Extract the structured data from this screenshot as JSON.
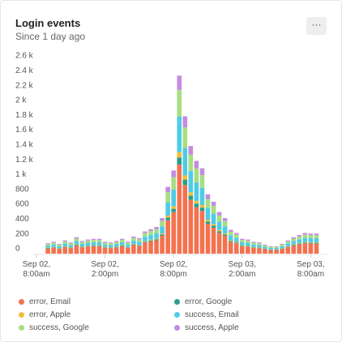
{
  "chart_data": {
    "type": "stacked_bar",
    "title": "Login events",
    "subtitle": "Since 1 day ago",
    "categories": [
      "Sep 02, 8:00am",
      null,
      null,
      null,
      null,
      null,
      null,
      null,
      null,
      null,
      null,
      null,
      "Sep 02, 2:00pm",
      null,
      null,
      null,
      null,
      null,
      null,
      null,
      null,
      null,
      null,
      null,
      "Sep 02, 8:00pm",
      null,
      null,
      null,
      null,
      null,
      null,
      null,
      null,
      null,
      null,
      null,
      "Sep 03, 2:00am",
      null,
      null,
      null,
      null,
      null,
      null,
      null,
      null,
      null,
      null,
      null,
      "Sep 03, 8:00am",
      null
    ],
    "series": [
      {
        "name": "error, Email",
        "color": "#f4724f",
        "values": [
          null,
          null,
          70,
          80,
          65,
          90,
          75,
          110,
          85,
          95,
          100,
          100,
          80,
          75,
          85,
          100,
          80,
          115,
          105,
          150,
          165,
          180,
          240,
          450,
          560,
          1200,
          925,
          725,
          625,
          575,
          400,
          350,
          280,
          240,
          160,
          140,
          100,
          95,
          80,
          75,
          60,
          50,
          50,
          65,
          90,
          110,
          125,
          140,
          135,
          135
        ]
      },
      {
        "name": "error, Google",
        "color": "#2a9d8a",
        "values": [
          null,
          null,
          6,
          6,
          5,
          7,
          6,
          9,
          7,
          8,
          8,
          8,
          6,
          6,
          7,
          8,
          6,
          9,
          8,
          12,
          13,
          14,
          19,
          36,
          45,
          96,
          74,
          58,
          50,
          46,
          32,
          28,
          22,
          19,
          13,
          11,
          8,
          8,
          6,
          6,
          5,
          4,
          4,
          5,
          7,
          9,
          10,
          11,
          11,
          11
        ]
      },
      {
        "name": "error, Apple",
        "color": "#f2bf3a",
        "values": [
          null,
          null,
          4,
          5,
          4,
          5,
          5,
          7,
          5,
          6,
          6,
          6,
          5,
          5,
          5,
          6,
          5,
          7,
          6,
          9,
          10,
          11,
          14,
          27,
          34,
          72,
          56,
          44,
          38,
          35,
          24,
          21,
          17,
          14,
          10,
          8,
          6,
          6,
          5,
          5,
          4,
          3,
          3,
          4,
          5,
          7,
          8,
          8,
          8,
          8
        ]
      },
      {
        "name": "success, Email",
        "color": "#4fcbe6",
        "values": [
          null,
          null,
          28,
          32,
          26,
          36,
          30,
          44,
          34,
          38,
          40,
          40,
          32,
          30,
          34,
          40,
          32,
          46,
          42,
          60,
          66,
          72,
          96,
          180,
          224,
          480,
          370,
          290,
          250,
          230,
          160,
          140,
          112,
          96,
          64,
          56,
          40,
          38,
          32,
          30,
          24,
          20,
          20,
          26,
          36,
          44,
          50,
          56,
          54,
          54
        ]
      },
      {
        "name": "success, Google",
        "color": "#a6de80",
        "values": [
          null,
          null,
          21,
          24,
          20,
          27,
          23,
          33,
          26,
          29,
          30,
          30,
          24,
          23,
          26,
          30,
          24,
          35,
          32,
          45,
          50,
          54,
          72,
          135,
          168,
          360,
          278,
          218,
          188,
          173,
          120,
          105,
          84,
          72,
          48,
          42,
          30,
          29,
          24,
          23,
          18,
          15,
          15,
          20,
          27,
          33,
          38,
          42,
          41,
          41
        ]
      },
      {
        "name": "success, Apple",
        "color": "#c48be0",
        "values": [
          null,
          null,
          11,
          13,
          10,
          14,
          12,
          18,
          14,
          15,
          16,
          16,
          13,
          12,
          14,
          16,
          13,
          18,
          17,
          24,
          26,
          29,
          38,
          72,
          90,
          192,
          148,
          116,
          100,
          92,
          64,
          56,
          45,
          38,
          26,
          22,
          16,
          15,
          13,
          12,
          10,
          8,
          8,
          10,
          14,
          18,
          20,
          22,
          22,
          22
        ]
      }
    ],
    "ylim": [
      0,
      2600
    ],
    "yticks": [
      0,
      200,
      400,
      600,
      800,
      {
        "value": 1000,
        "label": "1 k"
      },
      {
        "value": 1200,
        "label": "1.2 k"
      },
      {
        "value": 1400,
        "label": "1.4 k"
      },
      {
        "value": 1600,
        "label": "1.6 k"
      },
      {
        "value": 1800,
        "label": "1.8 k"
      },
      {
        "value": 2000,
        "label": "2 k"
      },
      {
        "value": 2200,
        "label": "2.2 k"
      },
      {
        "value": 2400,
        "label": "2.4 k"
      },
      {
        "value": 2600,
        "label": "2.6 k"
      }
    ],
    "grid": false,
    "legend": "bottom"
  }
}
